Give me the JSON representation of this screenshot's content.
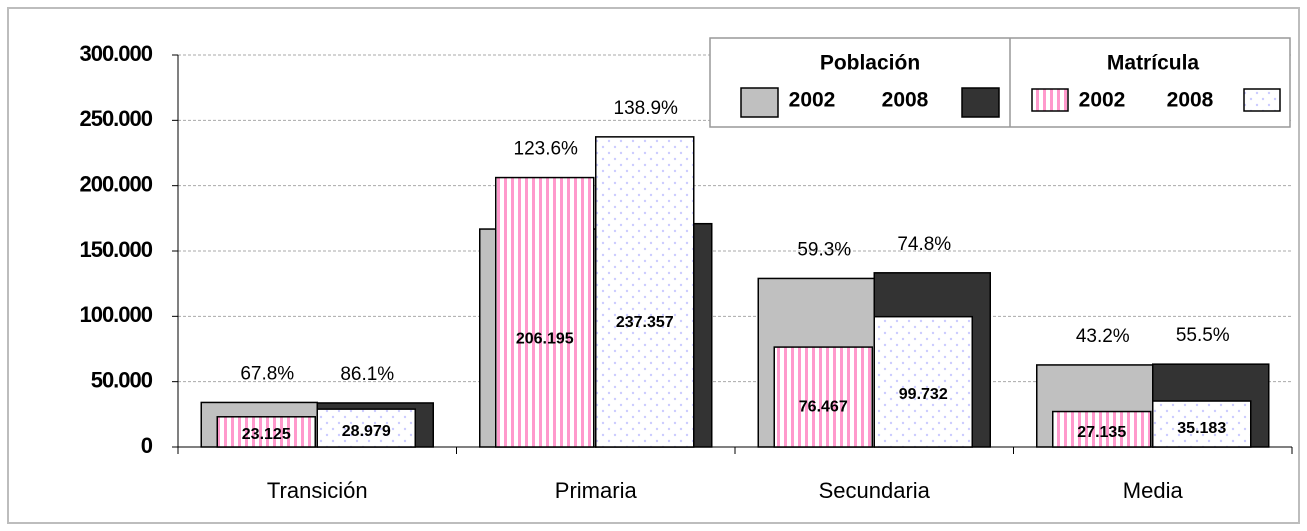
{
  "chart_data": {
    "type": "overlap-bar",
    "categories": [
      "Transición",
      "Primaria",
      "Secundaria",
      "Media"
    ],
    "ylim": [
      0,
      300000
    ],
    "yticks": [
      {
        "value": 0,
        "label": "0"
      },
      {
        "value": 50000,
        "label": "50.000"
      },
      {
        "value": 100000,
        "label": "100.000"
      },
      {
        "value": 150000,
        "label": "150.000"
      },
      {
        "value": 200000,
        "label": "200.000"
      },
      {
        "value": 250000,
        "label": "250.000"
      },
      {
        "value": 300000,
        "label": "300.000"
      }
    ],
    "grid": true,
    "series_groups": [
      {
        "title": "Población",
        "series": [
          {
            "name": "2002",
            "color": "#c0c0c0",
            "values": [
              34100,
              166800,
              129000,
              62800
            ]
          },
          {
            "name": "2008",
            "color": "#333333",
            "values": [
              33700,
              170900,
              133300,
              63400
            ]
          }
        ]
      },
      {
        "title": "Matrícula",
        "series": [
          {
            "name": "2002",
            "color": "#ff99cc",
            "pattern": "stripes",
            "values": [
              23125,
              206195,
              76467,
              27135
            ],
            "value_labels": [
              "23.125",
              "206.195",
              "76.467",
              "27.135"
            ],
            "coverage": {
              "values": [
                67.8,
                123.6,
                59.3,
                43.2
              ],
              "value_labels": [
                "67.8%",
                "123.6%",
                "59.3%",
                "43.2%"
              ]
            }
          },
          {
            "name": "2008",
            "color": "#ccccff",
            "pattern": "dots",
            "values": [
              28979,
              237357,
              99732,
              35183
            ],
            "value_labels": [
              "28.979",
              "237.357",
              "99.732",
              "35.183"
            ],
            "coverage": {
              "values": [
                86.1,
                138.9,
                74.8,
                55.5
              ],
              "value_labels": [
                "86.1%",
                "138.9%",
                "74.8%",
                "55.5%"
              ]
            }
          }
        ]
      }
    ]
  }
}
